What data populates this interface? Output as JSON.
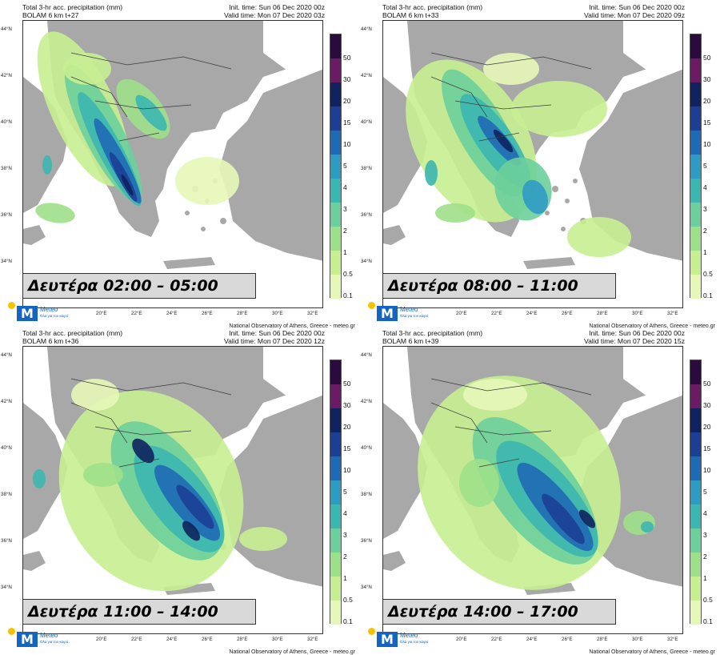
{
  "colors": {
    "land": "#a8a8a8",
    "sea": "#ffffff",
    "border": "#3a3a3a",
    "label_box": "#d9d9d9"
  },
  "colorbar": {
    "levels": [
      "50",
      "30",
      "20",
      "15",
      "10",
      "5",
      "4",
      "3",
      "2",
      "1",
      "0.5",
      "0.1"
    ],
    "colors": [
      "#2b0a3d",
      "#6b1b63",
      "#10235e",
      "#1c3f95",
      "#1f6ab5",
      "#2f9bc3",
      "#3cb6b0",
      "#6dcf9b",
      "#9ee08a",
      "#c8ee92",
      "#e6f7b8",
      "#ffffff"
    ]
  },
  "lat_ticks": [
    "44°N",
    "42°N",
    "40°N",
    "38°N",
    "36°N",
    "34°N"
  ],
  "lon_ticks": [
    "20°E",
    "22°E",
    "24°E",
    "26°E",
    "28°E",
    "30°E",
    "32°E"
  ],
  "logo": {
    "name": "Meteo",
    "tagline": "Όλα για τον καιρό"
  },
  "panels": [
    {
      "title": "Total 3-hr acc. precipitation (mm)",
      "model": "BOLAM 6 km t+27",
      "init": "Init. time: Sun 06 Dec 2020 00z",
      "valid": "Valid time: Mon 07 Dec 2020 03z",
      "day_label": "Δευτέρα 02:00 – 05:00",
      "credit": "National Observatory of Athens, Greece - meteo.gr"
    },
    {
      "title": "Total 3-hr acc. precipitation (mm)",
      "model": "BOLAM 6 km t+33",
      "init": "Init. time: Sun 06 Dec 2020 00z",
      "valid": "Valid time: Mon 07 Dec 2020 09z",
      "day_label": "Δευτέρα 08:00 – 11:00",
      "credit": "National Observatory of Athens, Greece - meteo.gr"
    },
    {
      "title": "Total 3-hr acc. precipitation (mm)",
      "model": "BOLAM 6 km t+36",
      "init": "Init. time: Sun 06 Dec 2020 00z",
      "valid": "Valid time: Mon 07 Dec 2020 12z",
      "day_label": "Δευτέρα 11:00 – 14:00",
      "credit": "National Observatory of Athens, Greece - meteo.gr"
    },
    {
      "title": "Total 3-hr acc. precipitation (mm)",
      "model": "BOLAM 6 km t+39",
      "init": "Init. time: Sun 06 Dec 2020 00z",
      "valid": "Valid time: Mon 07 Dec 2020 15z",
      "day_label": "Δευτέρα 14:00 – 17:00",
      "credit": "National Observatory of Athens, Greece - meteo.gr"
    }
  ]
}
